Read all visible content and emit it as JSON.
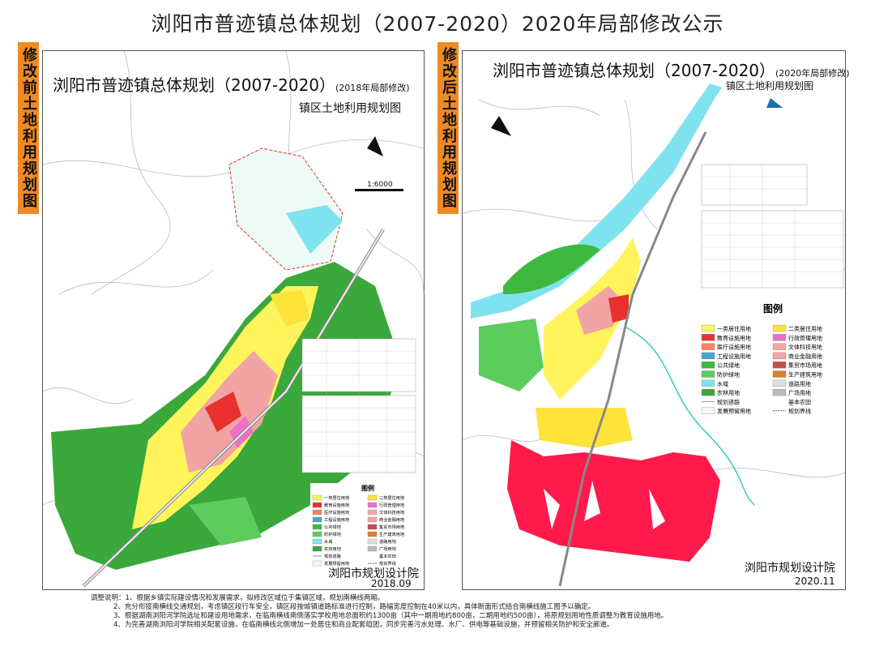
{
  "header": {
    "title": "浏阳市普迹镇总体规划（2007-2020）2020年局部修改公示"
  },
  "panels": [
    {
      "side_label": "修改前土地利用规划图",
      "map_title": "浏阳市普迹镇总体规划（2007-2020）",
      "map_title_note": "(2018年局部修改)",
      "map_subtitle": "镇区土地利用规划图",
      "scale": "1:6000",
      "legend_title": "图例",
      "legend": [
        {
          "label": "一类居住用地",
          "color": "#fff45c"
        },
        {
          "label": "二类居住用地",
          "color": "#ffe23a"
        },
        {
          "label": "教育设施用地",
          "color": "#e8312e"
        },
        {
          "label": "行政管理用地",
          "color": "#f06ec8"
        },
        {
          "label": "医疗设施用地",
          "color": "#ff7f66"
        },
        {
          "label": "文体科技用地",
          "color": "#f7a8a0"
        },
        {
          "label": "工程设施用地",
          "color": "#4aa6c7"
        },
        {
          "label": "商业金融用地",
          "color": "#f2a3a3"
        },
        {
          "label": "公共绿地",
          "color": "#3fb83f"
        },
        {
          "label": "集贸市场用地",
          "color": "#c0504d"
        },
        {
          "label": "防护绿地",
          "color": "#5ccc5c"
        },
        {
          "label": "生产建筑用地",
          "color": "#d9822b"
        },
        {
          "label": "水域",
          "color": "#7fe3ef"
        },
        {
          "label": "道路用地",
          "color": "#dddddd"
        },
        {
          "label": "农林用地",
          "color": "#3aa83a"
        },
        {
          "label": "广场用地",
          "color": "#bbbbbb"
        },
        {
          "label": "规划道路",
          "color": "#999999"
        },
        {
          "label": "基本农田",
          "color": "#ffffff"
        },
        {
          "label": "发展预留用地",
          "color": "#eefaf5"
        },
        {
          "label": "规划界线",
          "color": "#666666"
        }
      ],
      "institute": "浏阳市规划设计院",
      "date": "2018.09"
    },
    {
      "side_label": "修改后土地利用规划图",
      "map_title": "浏阳市普迹镇总体规划（2007-2020）",
      "map_title_note": "(2020年局部修改)",
      "map_subtitle": "镇区土地利用规划图",
      "legend_title": "图例",
      "legend": [
        {
          "label": "一类居住用地",
          "color": "#fff45c"
        },
        {
          "label": "二类居住用地",
          "color": "#ffe23a"
        },
        {
          "label": "教育设施用地",
          "color": "#e8312e"
        },
        {
          "label": "行政管理用地",
          "color": "#f06ec8"
        },
        {
          "label": "医疗设施用地",
          "color": "#ff7f66"
        },
        {
          "label": "文体科技用地",
          "color": "#f7a8a0"
        },
        {
          "label": "工程设施用地",
          "color": "#4aa6c7"
        },
        {
          "label": "商业金融用地",
          "color": "#f2a3a3"
        },
        {
          "label": "公共绿地",
          "color": "#3fb83f"
        },
        {
          "label": "集贸市场用地",
          "color": "#c0504d"
        },
        {
          "label": "防护绿地",
          "color": "#5ccc5c"
        },
        {
          "label": "生产建筑用地",
          "color": "#d9822b"
        },
        {
          "label": "水域",
          "color": "#7fe3ef"
        },
        {
          "label": "道路用地",
          "color": "#dddddd"
        },
        {
          "label": "农林用地",
          "color": "#3aa83a"
        },
        {
          "label": "广场用地",
          "color": "#bbbbbb"
        },
        {
          "label": "规划道路",
          "color": "#999999"
        },
        {
          "label": "基本农田",
          "color": "#ffffff"
        },
        {
          "label": "发展预留用地",
          "color": "#eefaf5"
        },
        {
          "label": "规划界线",
          "color": "#666666"
        }
      ],
      "institute": "浏阳市规划设计院",
      "date": "2020.11"
    }
  ],
  "notes": [
    "调整说明：1、根据乡镇实际建设情况和发展需求，拟修改区域位于集镇区域，规划南横线两厢。",
    "2、充分衔接南横线交通规划，考虑镇区段行车安全，镇区段按城镇道路标准进行控制，路幅宽度控制在40米以内，具体断面形式结合南横线施工图予以确定。",
    "3、根据湖南浏阳河学院选址和建设用地需求，在临南横线南侧落实学校用地总面积约1300亩（其中一期用地约800亩，二期用地约500亩），将原规划用地性质调整为教育设施用地。",
    "4、为完善湖南浏阳河学院相关配套设施，在临南横线北侧增加一处居住和商业配套组团，同步完善污水处理、水厂、供电等基础设施，并预留相关防护和安全廊道。"
  ]
}
